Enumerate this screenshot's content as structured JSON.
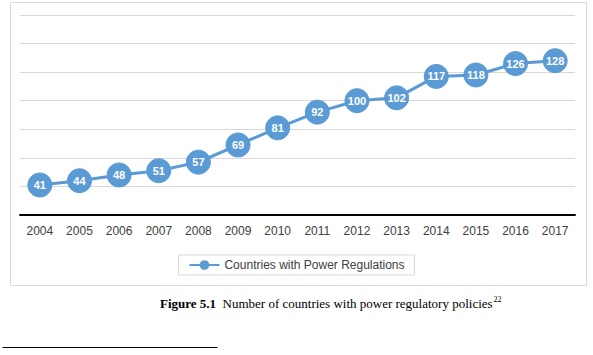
{
  "chart_data": {
    "type": "line",
    "figure_label": "Figure 5.1",
    "title": "Number of countries with power regulatory policies",
    "footnote_mark": "22",
    "categories": [
      "2004",
      "2005",
      "2006",
      "2007",
      "2008",
      "2009",
      "2010",
      "2011",
      "2012",
      "2013",
      "2014",
      "2015",
      "2016",
      "2017"
    ],
    "series": [
      {
        "name": "Countries with Power Regulations",
        "color": "#5b9bd5",
        "values": [
          41,
          44,
          48,
          51,
          57,
          69,
          81,
          92,
          100,
          102,
          117,
          118,
          126,
          128
        ]
      }
    ],
    "ylim": [
      20,
      160
    ],
    "yticks": [
      20,
      40,
      60,
      80,
      100,
      120,
      140,
      160
    ],
    "grid": true,
    "legend": "bottom",
    "data_labels": true,
    "tick_labels": "x",
    "marker": "circle"
  }
}
